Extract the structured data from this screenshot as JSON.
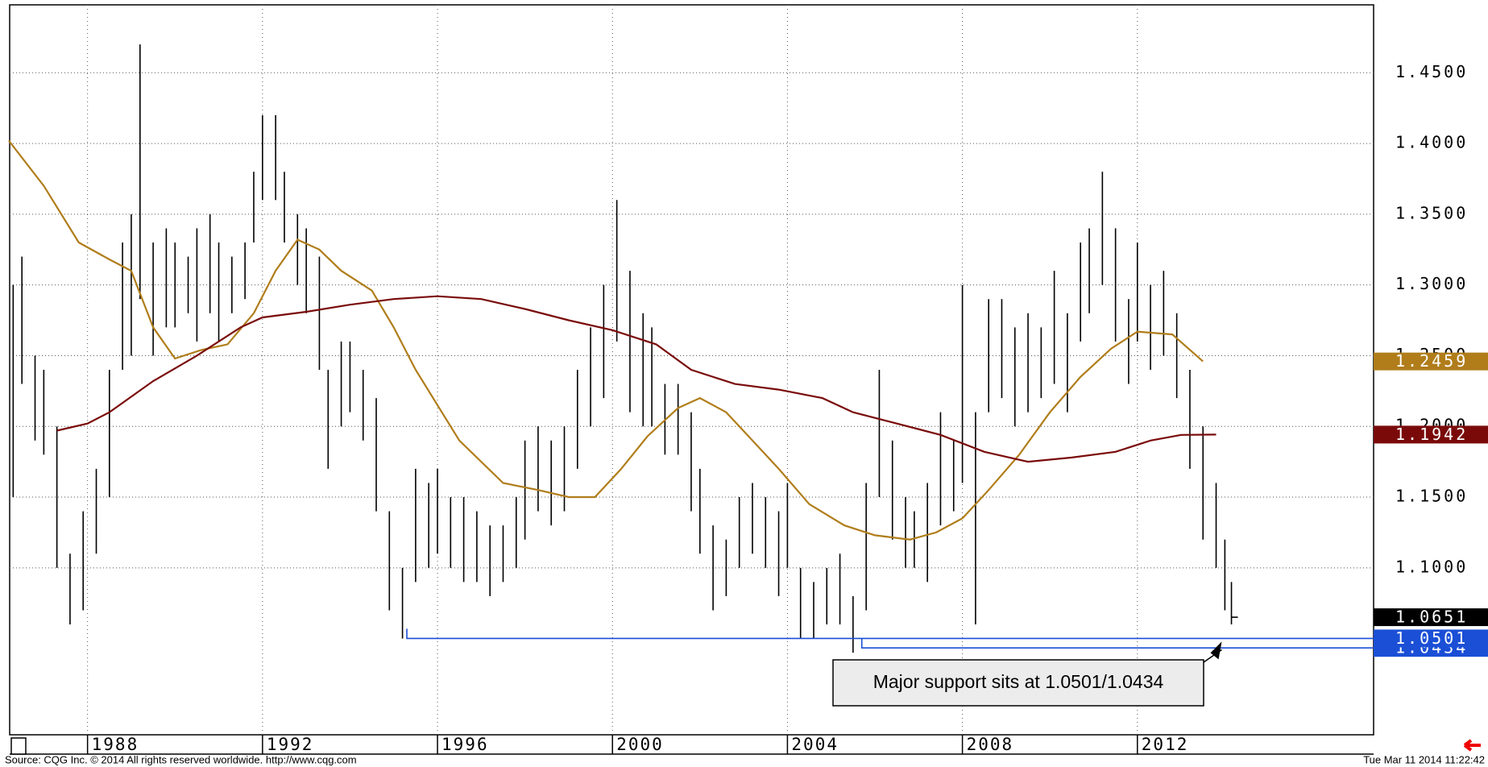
{
  "chart_data": {
    "type": "ohlc",
    "xlim": [
      1986.22,
      2017.4
    ],
    "xticks": [
      1988,
      1992,
      1996,
      2000,
      2004,
      2008,
      2012
    ],
    "ylim": [
      0.982,
      1.498
    ],
    "yticks": [
      {
        "value": 1.45,
        "label": "1.4500"
      },
      {
        "value": 1.4,
        "label": "1.4000"
      },
      {
        "value": 1.35,
        "label": "1.3500"
      },
      {
        "value": 1.3,
        "label": "1.3000"
      },
      {
        "value": 1.25,
        "label": "1.2500"
      },
      {
        "value": 1.2,
        "label": "1.2000"
      },
      {
        "value": 1.15,
        "label": "1.1500"
      },
      {
        "value": 1.1,
        "label": "1.1000"
      }
    ],
    "grid": true,
    "color": "#000000",
    "x": [
      1986.3,
      1986.5,
      1986.8,
      1987.0,
      1987.3,
      1987.6,
      1987.9,
      1988.2,
      1988.5,
      1988.8,
      1989.0,
      1989.2,
      1989.5,
      1989.8,
      1990.0,
      1990.3,
      1990.5,
      1990.8,
      1991.0,
      1991.3,
      1991.6,
      1991.8,
      1992.0,
      1992.3,
      1992.5,
      1992.8,
      1993.0,
      1993.3,
      1993.5,
      1993.8,
      1994.0,
      1994.3,
      1994.6,
      1994.9,
      1995.2,
      1995.5,
      1995.8,
      1996.0,
      1996.3,
      1996.6,
      1996.9,
      1997.2,
      1997.5,
      1997.8,
      1998.0,
      1998.3,
      1998.6,
      1998.9,
      1999.2,
      1999.5,
      1999.8,
      2000.1,
      2000.4,
      2000.7,
      2000.9,
      2001.2,
      2001.5,
      2001.8,
      2002.0,
      2002.3,
      2002.6,
      2002.9,
      2003.2,
      2003.5,
      2003.8,
      2004.0,
      2004.3,
      2004.6,
      2004.9,
      2005.2,
      2005.5,
      2005.8,
      2006.1,
      2006.4,
      2006.7,
      2006.9,
      2007.2,
      2007.5,
      2007.8,
      2008.0,
      2008.3,
      2008.6,
      2008.9,
      2009.2,
      2009.5,
      2009.8,
      2010.1,
      2010.4,
      2010.7,
      2010.9,
      2011.2,
      2011.5,
      2011.8,
      2012.0,
      2012.3,
      2012.6,
      2012.9,
      2013.2,
      2013.5,
      2013.8,
      2014.0,
      2014.15
    ],
    "high": [
      1.3,
      1.32,
      1.25,
      1.24,
      1.2,
      1.11,
      1.14,
      1.17,
      1.24,
      1.33,
      1.35,
      1.47,
      1.33,
      1.34,
      1.33,
      1.32,
      1.34,
      1.35,
      1.33,
      1.32,
      1.33,
      1.38,
      1.42,
      1.42,
      1.38,
      1.35,
      1.34,
      1.32,
      1.24,
      1.26,
      1.26,
      1.24,
      1.22,
      1.14,
      1.1,
      1.17,
      1.16,
      1.17,
      1.15,
      1.15,
      1.14,
      1.13,
      1.13,
      1.15,
      1.19,
      1.2,
      1.19,
      1.2,
      1.24,
      1.27,
      1.3,
      1.36,
      1.31,
      1.28,
      1.27,
      1.23,
      1.23,
      1.21,
      1.17,
      1.13,
      1.12,
      1.15,
      1.16,
      1.15,
      1.14,
      1.16,
      1.1,
      1.09,
      1.1,
      1.11,
      1.08,
      1.16,
      1.24,
      1.19,
      1.15,
      1.14,
      1.16,
      1.21,
      1.19,
      1.3,
      1.21,
      1.29,
      1.29,
      1.27,
      1.28,
      1.27,
      1.31,
      1.28,
      1.33,
      1.34,
      1.38,
      1.34,
      1.29,
      1.33,
      1.3,
      1.31,
      1.28,
      1.24,
      1.2,
      1.16,
      1.12,
      1.09
    ],
    "low": [
      1.15,
      1.23,
      1.19,
      1.18,
      1.1,
      1.06,
      1.07,
      1.11,
      1.15,
      1.24,
      1.25,
      1.29,
      1.25,
      1.27,
      1.27,
      1.28,
      1.26,
      1.28,
      1.26,
      1.28,
      1.29,
      1.33,
      1.36,
      1.36,
      1.33,
      1.3,
      1.28,
      1.24,
      1.17,
      1.2,
      1.21,
      1.19,
      1.14,
      1.07,
      1.05,
      1.09,
      1.1,
      1.11,
      1.1,
      1.09,
      1.09,
      1.08,
      1.09,
      1.1,
      1.12,
      1.14,
      1.13,
      1.14,
      1.17,
      1.2,
      1.22,
      1.26,
      1.21,
      1.2,
      1.2,
      1.18,
      1.18,
      1.14,
      1.11,
      1.07,
      1.08,
      1.1,
      1.11,
      1.1,
      1.08,
      1.1,
      1.05,
      1.05,
      1.06,
      1.06,
      1.04,
      1.07,
      1.15,
      1.12,
      1.1,
      1.1,
      1.09,
      1.13,
      1.14,
      1.16,
      1.06,
      1.21,
      1.22,
      1.2,
      1.21,
      1.22,
      1.23,
      1.21,
      1.26,
      1.28,
      1.3,
      1.26,
      1.23,
      1.26,
      1.24,
      1.25,
      1.22,
      1.17,
      1.12,
      1.1,
      1.07,
      1.06
    ],
    "last_close": 1.0651,
    "last_close_label": "1.0651",
    "averages": [
      {
        "color": "#b07d1a",
        "x": [
          1986.2,
          1987.0,
          1987.8,
          1988.5,
          1989.0,
          1989.5,
          1990.0,
          1990.6,
          1991.2,
          1991.8,
          1992.3,
          1992.8,
          1993.3,
          1993.8,
          1994.5,
          1995.0,
          1995.5,
          1996.5,
          1997.5,
          1998.3,
          1999.0,
          1999.6,
          2000.2,
          2000.8,
          2001.5,
          2002.0,
          2002.6,
          2003.2,
          2003.8,
          2004.5,
          2005.3,
          2006.0,
          2006.8,
          2007.4,
          2008.0,
          2008.6,
          2009.3,
          2010.0,
          2010.7,
          2011.4,
          2012.0,
          2012.8,
          2013.5
        ],
        "values": [
          1.402,
          1.37,
          1.33,
          1.318,
          1.31,
          1.27,
          1.248,
          1.254,
          1.258,
          1.28,
          1.31,
          1.332,
          1.325,
          1.31,
          1.296,
          1.27,
          1.24,
          1.19,
          1.16,
          1.155,
          1.15,
          1.15,
          1.17,
          1.193,
          1.213,
          1.22,
          1.21,
          1.19,
          1.17,
          1.145,
          1.13,
          1.123,
          1.12,
          1.125,
          1.135,
          1.155,
          1.18,
          1.21,
          1.235,
          1.255,
          1.267,
          1.265,
          1.2459
        ],
        "value_label": "1.2459"
      },
      {
        "color": "#7a0a0a",
        "x": [
          1987.3,
          1988.0,
          1988.5,
          1989.5,
          1990.5,
          1991.5,
          1992.0,
          1993.0,
          1994.0,
          1995.0,
          1996.0,
          1997.0,
          1998.0,
          1999.0,
          2000.0,
          2001.0,
          2001.8,
          2002.8,
          2003.8,
          2004.8,
          2005.5,
          2006.5,
          2007.5,
          2008.5,
          2009.5,
          2010.5,
          2011.5,
          2012.3,
          2013.0,
          2013.8
        ],
        "values": [
          1.197,
          1.202,
          1.21,
          1.232,
          1.25,
          1.27,
          1.277,
          1.281,
          1.286,
          1.29,
          1.292,
          1.29,
          1.283,
          1.275,
          1.268,
          1.258,
          1.24,
          1.23,
          1.226,
          1.22,
          1.21,
          1.202,
          1.194,
          1.182,
          1.175,
          1.178,
          1.182,
          1.19,
          1.194,
          1.1942
        ],
        "value_label": "1.1942"
      }
    ],
    "levels_color": "#1a4fd6",
    "levels": [
      {
        "value": 1.0434,
        "label": "1.0434",
        "from": 2005.7
      },
      {
        "value": 1.0501,
        "label": "1.0501",
        "from": 1995.3
      }
    ],
    "annotation": "Major support sits at 1.0501/1.0434",
    "source": "Source: CQG Inc. © 2014 All rights reserved worldwide. http://www.cqg.com",
    "timestamp": "Tue Mar 11 2014 11:22:42"
  }
}
